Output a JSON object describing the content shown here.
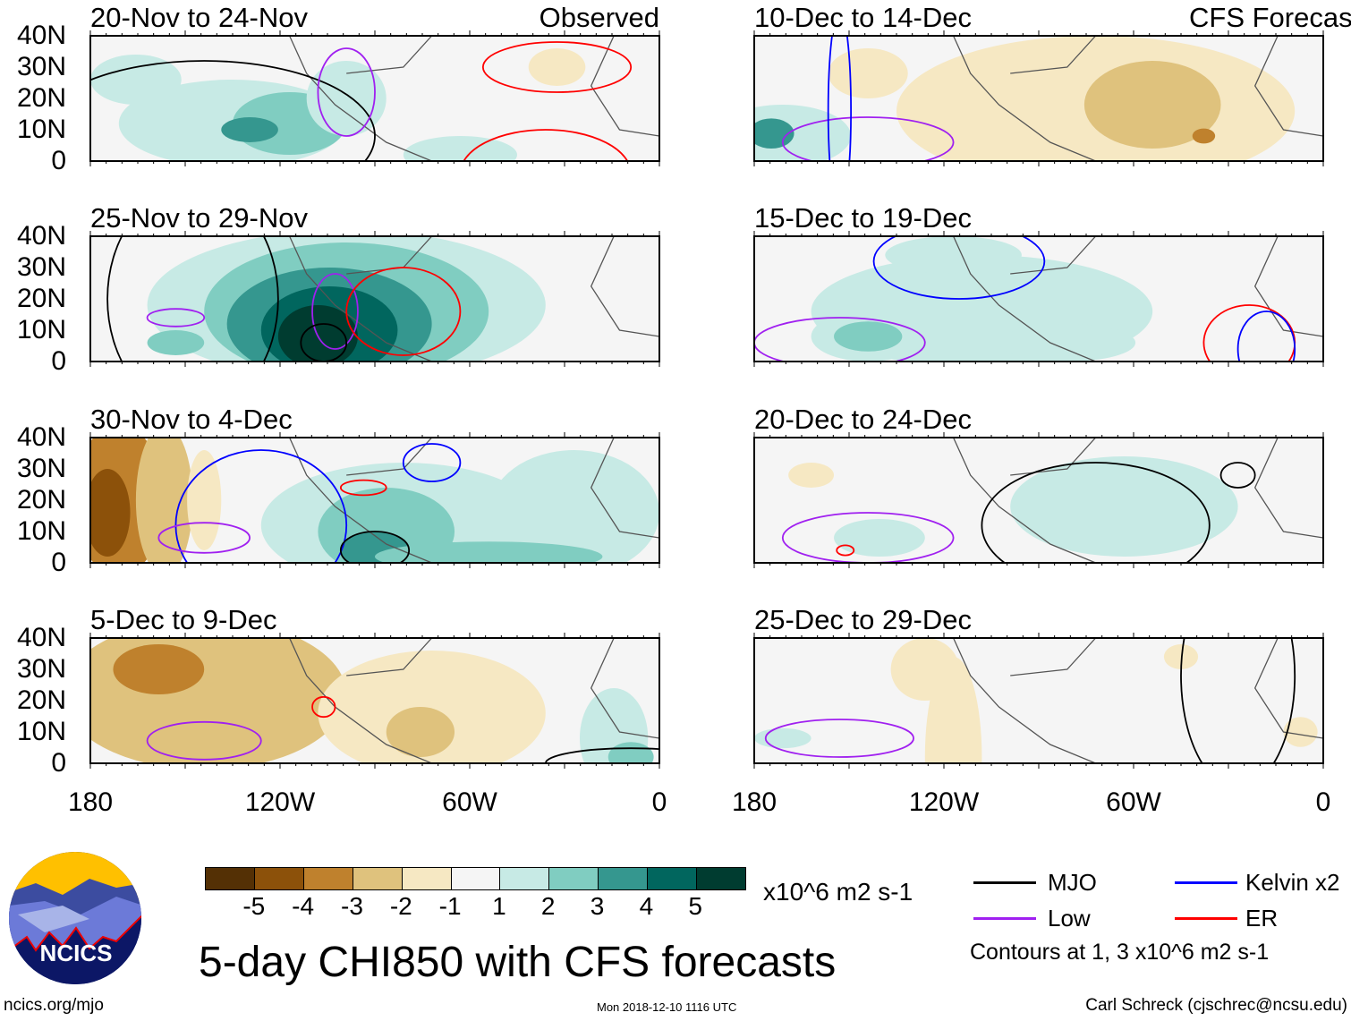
{
  "headers": {
    "observed": "Observed",
    "forecast": "CFS Forecast"
  },
  "panels": [
    {
      "title": "20-Nov to 24-Nov",
      "column": "observed"
    },
    {
      "title": "25-Nov to 29-Nov",
      "column": "observed"
    },
    {
      "title": "30-Nov to 4-Dec",
      "column": "observed"
    },
    {
      "title": "5-Dec to 9-Dec",
      "column": "observed"
    },
    {
      "title": "10-Dec to 14-Dec",
      "column": "forecast"
    },
    {
      "title": "15-Dec to 19-Dec",
      "column": "forecast"
    },
    {
      "title": "20-Dec to 24-Dec",
      "column": "forecast"
    },
    {
      "title": "25-Dec to 29-Dec",
      "column": "forecast"
    }
  ],
  "lat_labels": [
    "40N",
    "30N",
    "20N",
    "10N",
    "0"
  ],
  "lon_labels": [
    "180",
    "120W",
    "60W",
    "0"
  ],
  "colorbar": {
    "labels": [
      "-5",
      "-4",
      "-3",
      "-2",
      "-1",
      "1",
      "2",
      "3",
      "4",
      "5"
    ],
    "colors": [
      "#543005",
      "#8c510a",
      "#bf812d",
      "#dfc27d",
      "#f6e8c3",
      "#f5f5f5",
      "#c7eae5",
      "#80cdc1",
      "#35978f",
      "#01665e",
      "#003c30"
    ],
    "units": "x10^6 m2 s-1"
  },
  "legend": {
    "items": [
      {
        "label": "MJO",
        "color": "#000000"
      },
      {
        "label": "Kelvin x2",
        "color": "#0000ff"
      },
      {
        "label": "Low",
        "color": "#a020f0"
      },
      {
        "label": "ER",
        "color": "#ff0000"
      }
    ],
    "note": "Contours at 1, 3 x10^6 m2 s-1"
  },
  "logo": {
    "text": "NCICS"
  },
  "title": "5-day CHI850 with CFS forecasts",
  "footer": {
    "left": "ncics.org/mjo",
    "center": "Mon 2018-12-10 1116 UTC",
    "right": "Carl Schreck (cjschrec@ncsu.edu)"
  }
}
